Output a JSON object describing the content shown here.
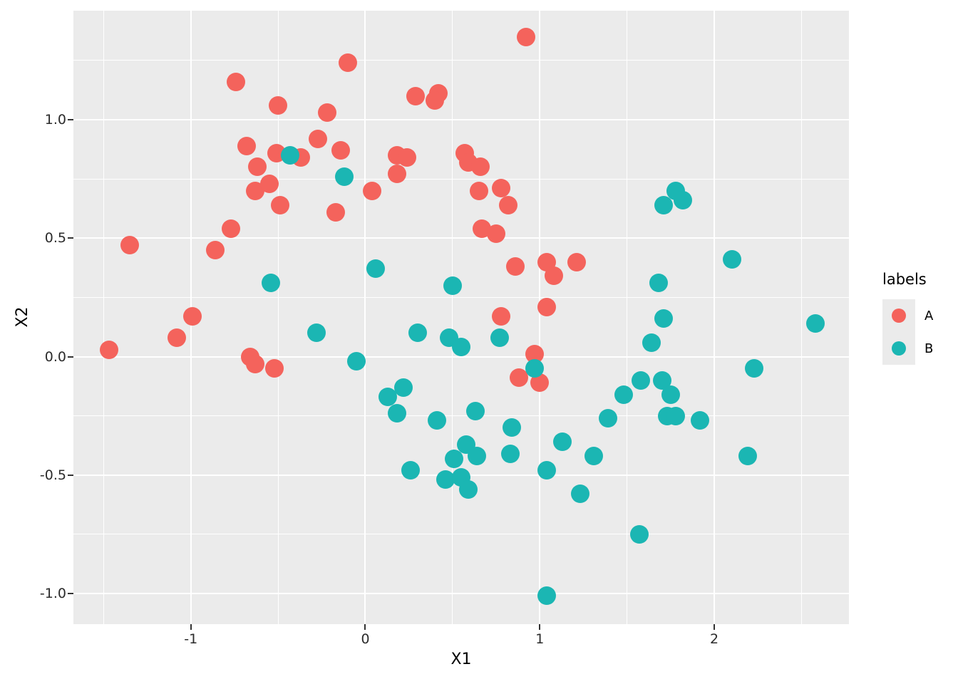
{
  "chart_data": {
    "type": "scatter",
    "title": "",
    "xlabel": "X1",
    "ylabel": "X2",
    "xlim": [
      -1.673,
      2.772
    ],
    "ylim": [
      -1.129,
      1.46
    ],
    "grid": "on",
    "panel_bg": "#EBEBEB",
    "grid_color": "#FFFFFF",
    "x_tick_values": [
      -1,
      0,
      1,
      2
    ],
    "x_tick_labels": [
      "-1",
      "0",
      "1",
      "2"
    ],
    "x_minor_ticks": [
      -1.5,
      -0.5,
      0.5,
      1.5,
      2.5
    ],
    "y_tick_values": [
      1.0,
      0.5,
      0.0,
      -0.5,
      -1.0
    ],
    "y_tick_labels": [
      "1.0",
      "0.5",
      "0.0",
      "-0.5",
      "-1.0"
    ],
    "y_minor_ticks": [
      1.25,
      0.75,
      0.25,
      -0.25,
      -0.75
    ],
    "legend": {
      "title": "labels",
      "position": "right",
      "entries": [
        {
          "label": "A",
          "color": "#F4635C"
        },
        {
          "label": "B",
          "color": "#1BB6B3"
        }
      ]
    },
    "series": [
      {
        "name": "A",
        "color": "#F4635C",
        "points": [
          [
            -0.74,
            1.16
          ],
          [
            -0.5,
            1.06
          ],
          [
            -0.22,
            1.03
          ],
          [
            -0.27,
            0.92
          ],
          [
            -0.68,
            0.89
          ],
          [
            -0.51,
            0.86
          ],
          [
            -0.37,
            0.84
          ],
          [
            -0.62,
            0.8
          ],
          [
            -0.63,
            0.7
          ],
          [
            -0.55,
            0.73
          ],
          [
            -0.49,
            0.64
          ],
          [
            0.92,
            1.35
          ],
          [
            -0.1,
            1.24
          ],
          [
            0.29,
            1.1
          ],
          [
            0.42,
            1.11
          ],
          [
            0.4,
            1.08
          ],
          [
            -0.14,
            0.87
          ],
          [
            0.18,
            0.85
          ],
          [
            0.24,
            0.84
          ],
          [
            0.18,
            0.77
          ],
          [
            0.04,
            0.7
          ],
          [
            0.57,
            0.86
          ],
          [
            0.59,
            0.82
          ],
          [
            0.66,
            0.8
          ],
          [
            0.65,
            0.7
          ],
          [
            0.78,
            0.71
          ],
          [
            0.82,
            0.64
          ],
          [
            -0.17,
            0.61
          ],
          [
            -0.77,
            0.54
          ],
          [
            -1.35,
            0.47
          ],
          [
            -0.86,
            0.45
          ],
          [
            -0.99,
            0.17
          ],
          [
            -1.08,
            0.08
          ],
          [
            -1.47,
            0.03
          ],
          [
            -0.66,
            0.0
          ],
          [
            -0.63,
            -0.03
          ],
          [
            -0.52,
            -0.05
          ],
          [
            0.67,
            0.54
          ],
          [
            0.75,
            0.52
          ],
          [
            0.86,
            0.38
          ],
          [
            1.04,
            0.4
          ],
          [
            1.08,
            0.34
          ],
          [
            1.21,
            0.4
          ],
          [
            1.04,
            0.21
          ],
          [
            0.78,
            0.17
          ],
          [
            0.97,
            0.01
          ],
          [
            0.88,
            -0.09
          ],
          [
            1.0,
            -0.11
          ]
        ]
      },
      {
        "name": "B",
        "color": "#1BB6B3",
        "points": [
          [
            -0.43,
            0.85
          ],
          [
            -0.12,
            0.76
          ],
          [
            1.78,
            0.7
          ],
          [
            1.71,
            0.64
          ],
          [
            1.82,
            0.66
          ],
          [
            -0.54,
            0.31
          ],
          [
            -0.28,
            0.1
          ],
          [
            0.06,
            0.37
          ],
          [
            0.5,
            0.3
          ],
          [
            0.3,
            0.1
          ],
          [
            0.48,
            0.08
          ],
          [
            0.55,
            0.04
          ],
          [
            0.77,
            0.08
          ],
          [
            -0.05,
            -0.02
          ],
          [
            0.97,
            -0.05
          ],
          [
            0.13,
            -0.17
          ],
          [
            0.22,
            -0.13
          ],
          [
            0.18,
            -0.24
          ],
          [
            0.41,
            -0.27
          ],
          [
            0.63,
            -0.23
          ],
          [
            2.1,
            0.41
          ],
          [
            1.68,
            0.31
          ],
          [
            1.71,
            0.16
          ],
          [
            1.64,
            0.06
          ],
          [
            2.58,
            0.14
          ],
          [
            2.23,
            -0.05
          ],
          [
            1.58,
            -0.1
          ],
          [
            1.7,
            -0.1
          ],
          [
            1.48,
            -0.16
          ],
          [
            1.75,
            -0.16
          ],
          [
            0.84,
            -0.3
          ],
          [
            0.58,
            -0.37
          ],
          [
            0.51,
            -0.43
          ],
          [
            0.64,
            -0.42
          ],
          [
            0.83,
            -0.41
          ],
          [
            1.13,
            -0.36
          ],
          [
            1.31,
            -0.42
          ],
          [
            0.26,
            -0.48
          ],
          [
            0.46,
            -0.52
          ],
          [
            0.55,
            -0.51
          ],
          [
            0.59,
            -0.56
          ],
          [
            1.04,
            -0.48
          ],
          [
            1.23,
            -0.58
          ],
          [
            1.04,
            -1.01
          ],
          [
            1.39,
            -0.26
          ],
          [
            1.73,
            -0.25
          ],
          [
            1.78,
            -0.25
          ],
          [
            1.92,
            -0.27
          ],
          [
            2.19,
            -0.42
          ],
          [
            1.57,
            -0.75
          ]
        ]
      }
    ]
  }
}
